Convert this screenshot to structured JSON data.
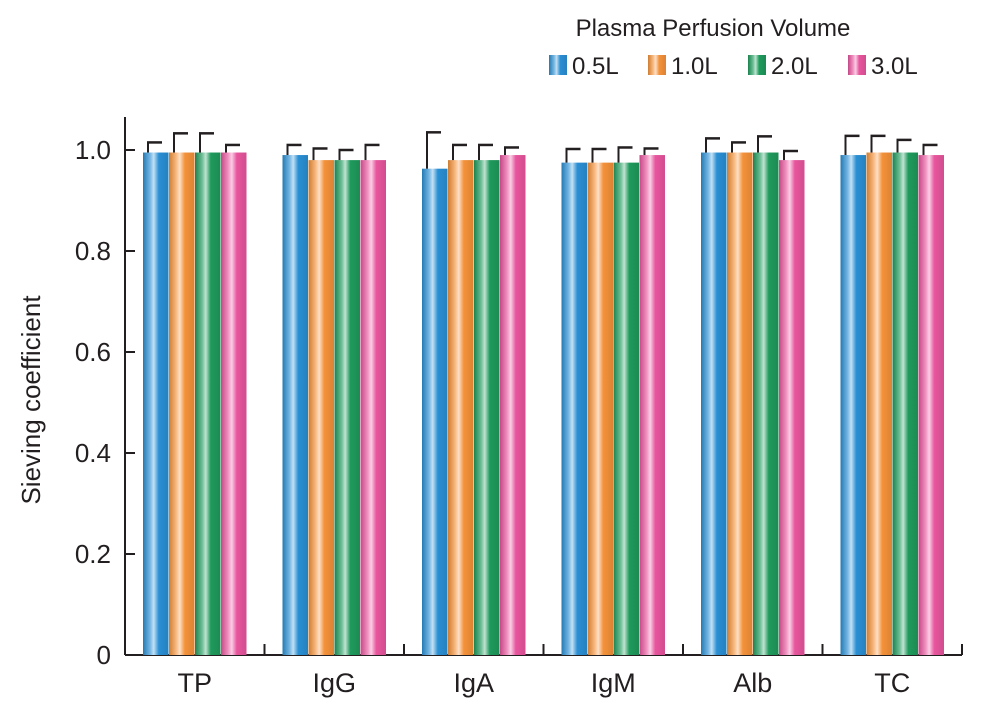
{
  "chart_data": {
    "type": "bar",
    "title": "",
    "xlabel": "",
    "ylabel": "Sieving coefficient",
    "ylim": [
      0,
      1.05
    ],
    "yticks": [
      "0",
      "0.2",
      "0.4",
      "0.6",
      "0.8",
      "1.0"
    ],
    "legend": {
      "title": "Plasma Perfusion Volume",
      "position": "top-right"
    },
    "categories": [
      "TP",
      "IgG",
      "IgA",
      "IgM",
      "Alb",
      "TC"
    ],
    "series": [
      {
        "name": "0.5L",
        "color": "#2a8fd4",
        "values": [
          0.995,
          0.99,
          0.963,
          0.975,
          0.995,
          0.99
        ],
        "errors": [
          0.02,
          0.02,
          0.072,
          0.027,
          0.028,
          0.038
        ]
      },
      {
        "name": "1.0L",
        "color": "#f4923a",
        "values": [
          0.995,
          0.98,
          0.98,
          0.975,
          0.995,
          0.995
        ],
        "errors": [
          0.038,
          0.023,
          0.03,
          0.027,
          0.02,
          0.033
        ]
      },
      {
        "name": "2.0L",
        "color": "#1f9a5c",
        "values": [
          0.995,
          0.98,
          0.98,
          0.975,
          0.995,
          0.995
        ],
        "errors": [
          0.038,
          0.02,
          0.03,
          0.03,
          0.032,
          0.025
        ]
      },
      {
        "name": "3.0L",
        "color": "#e8559e",
        "values": [
          0.995,
          0.98,
          0.99,
          0.99,
          0.98,
          0.99
        ],
        "errors": [
          0.015,
          0.03,
          0.015,
          0.013,
          0.018,
          0.02
        ]
      }
    ]
  }
}
